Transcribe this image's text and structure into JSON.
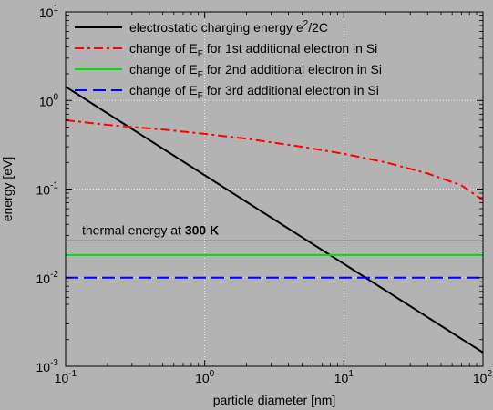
{
  "chart_data": {
    "type": "line",
    "xlabel": "particle diameter [nm]",
    "ylabel": "energy [eV]",
    "xscale": "log",
    "yscale": "log",
    "xlim": [
      0.1,
      100
    ],
    "ylim": [
      0.001,
      10
    ],
    "grid": true,
    "legend_position": "top-left",
    "x_ticks": [
      {
        "base": "10",
        "exp": "-1",
        "value": 0.1
      },
      {
        "base": "10",
        "exp": "0",
        "value": 1
      },
      {
        "base": "10",
        "exp": "1",
        "value": 10
      },
      {
        "base": "10",
        "exp": "2",
        "value": 100
      }
    ],
    "y_ticks": [
      {
        "base": "10",
        "exp": "-3",
        "value": 0.001
      },
      {
        "base": "10",
        "exp": "-2",
        "value": 0.01
      },
      {
        "base": "10",
        "exp": "-1",
        "value": 0.1
      },
      {
        "base": "10",
        "exp": "0",
        "value": 1
      },
      {
        "base": "10",
        "exp": "1",
        "value": 10
      }
    ],
    "series": [
      {
        "name_parts": [
          "electrostatic charging energy e",
          "2",
          "/2C"
        ],
        "color": "#000000",
        "dash": "solid",
        "x": [
          0.1,
          100
        ],
        "y": [
          1.43,
          0.00143
        ]
      },
      {
        "name_parts": [
          "change of E",
          "F",
          " for 1st additional electron in Si"
        ],
        "color": "#ff0000",
        "dash": "dashdot",
        "x": [
          0.1,
          0.2,
          0.5,
          1,
          2,
          5,
          10,
          20,
          40,
          70,
          100
        ],
        "y": [
          0.6,
          0.53,
          0.47,
          0.42,
          0.37,
          0.3,
          0.25,
          0.2,
          0.15,
          0.11,
          0.075
        ]
      },
      {
        "name_parts": [
          "change of E",
          "F",
          " for 2nd additional electron in Si"
        ],
        "color": "#00e000",
        "dash": "solid",
        "x": [
          0.1,
          100
        ],
        "y": [
          0.018,
          0.018
        ]
      },
      {
        "name_parts": [
          "change of E",
          "F",
          " for 3rd additional electron in Si"
        ],
        "color": "#0000ff",
        "dash": "dashed",
        "x": [
          0.1,
          100
        ],
        "y": [
          0.01,
          0.01
        ]
      }
    ],
    "reference_lines": [
      {
        "label_parts": [
          "thermal energy at ",
          "300 K"
        ],
        "y": 0.026,
        "color": "#000000"
      }
    ]
  }
}
